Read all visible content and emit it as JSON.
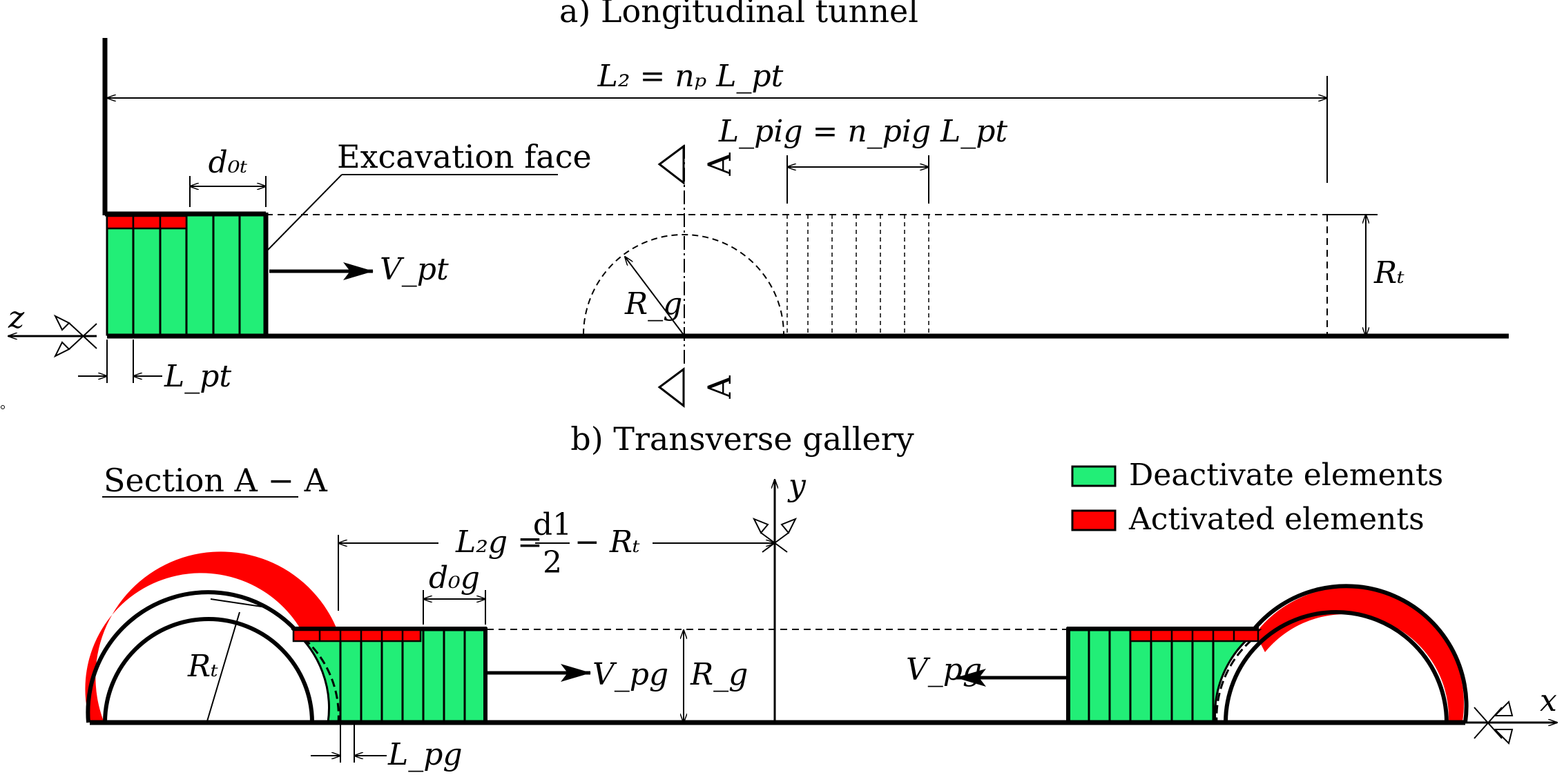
{
  "captions": {
    "a": "a) Longitudinal tunnel",
    "b": "b) Transverse gallery",
    "section": "Section A − A"
  },
  "labels": {
    "excavation_face": "Excavation face",
    "L2": "L₂ = nₚ L_pt",
    "Lpig": "L_pig = n_pig L_pt",
    "d0t": "d₀ₜ",
    "Vpt": "V_pt",
    "Rg": "R_g",
    "Rt": "Rₜ",
    "Lpt": "L_pt",
    "z": "z",
    "A_top": "A",
    "A_bottom": "A",
    "L2g_lhs": "L₂g =",
    "L2g_num": "d1",
    "L2g_den": "2",
    "L2g_rhs": "− Rₜ",
    "d0g": "d₀g",
    "Vpg_left": "V_pg",
    "Vpg_right": "V_pg",
    "Rg_gallery": "R_g",
    "Rt_gallery": "Rₜ",
    "Lpg": "L_pg",
    "x": "x",
    "y": "y"
  },
  "legend": [
    {
      "label": "Deactivate elements",
      "color": "#22ee77"
    },
    {
      "label": "Activated elements",
      "color": "#ff0000"
    }
  ],
  "colors": {
    "deactivated": "#22ee77",
    "activated": "#ff0000",
    "line": "#000000"
  }
}
